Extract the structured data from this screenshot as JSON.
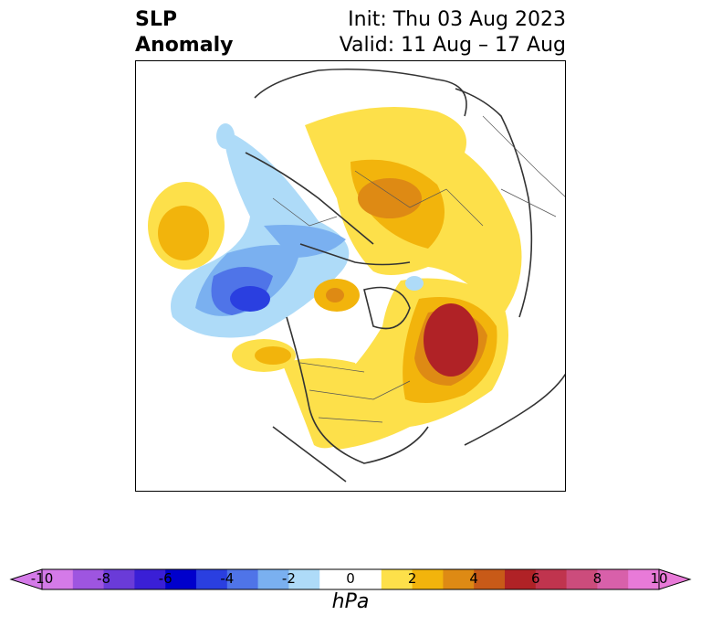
{
  "title": {
    "variable_line1": "SLP",
    "variable_line2": "Anomaly",
    "init": "Init: Thu 03 Aug 2023",
    "valid": "Valid: 11 Aug – 17 Aug"
  },
  "colorbar": {
    "unit": "hPa",
    "ticks": [
      "-10",
      "-8",
      "-6",
      "-4",
      "-2",
      "0",
      "2",
      "4",
      "6",
      "8",
      "10"
    ],
    "colors": [
      "#d47ae8",
      "#9e55e0",
      "#6a3bd8",
      "#3a1fd6",
      "#0000cc",
      "#2a3fe0",
      "#4f74e8",
      "#7ab0f0",
      "#aedbf8",
      "#ffffff",
      "#ffffff",
      "#fde04a",
      "#f2b40c",
      "#de8a14",
      "#c85a18",
      "#b02226",
      "#c0344e",
      "#cc4c7c",
      "#d860aa",
      "#e87ad8"
    ],
    "extend_low_color": "#d47ae8",
    "extend_high_color": "#e87ad8"
  },
  "map": {
    "projection": "north polar stereographic",
    "field": "sea level pressure anomaly"
  }
}
